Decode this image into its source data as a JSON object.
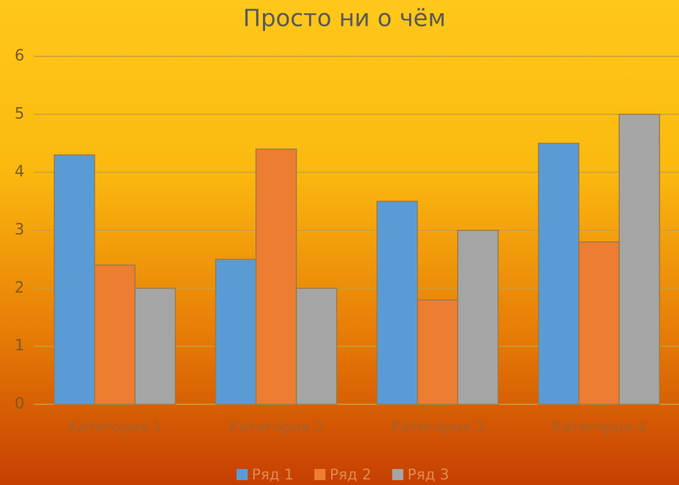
{
  "chart_data": {
    "type": "bar",
    "title": "Просто ни о чём",
    "categories": [
      "Категория 1",
      "Категория 2",
      "Категория 3",
      "Категория 4"
    ],
    "series": [
      {
        "name": "Ряд 1",
        "color": "#5b9bd5",
        "values": [
          4.3,
          2.5,
          3.5,
          4.5
        ]
      },
      {
        "name": "Ряд 2",
        "color": "#ed7d31",
        "values": [
          2.4,
          4.4,
          1.8,
          2.8
        ]
      },
      {
        "name": "Ряд 3",
        "color": "#a5a5a5",
        "values": [
          2,
          2,
          3,
          5
        ]
      }
    ],
    "ylim": [
      0,
      6
    ],
    "yticks": [
      0,
      1,
      2,
      3,
      4,
      5,
      6
    ],
    "grid": true,
    "legend": "bottom"
  }
}
